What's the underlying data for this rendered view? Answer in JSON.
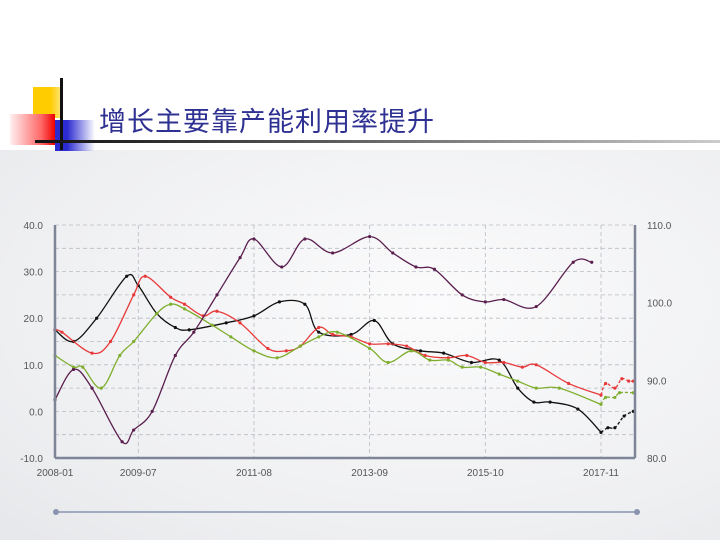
{
  "slide": {
    "title": "增长主要靠产能利用率提升"
  },
  "chart_data": {
    "type": "line",
    "title": "",
    "xlabel": "",
    "ylabel": "",
    "x_unit": "months since 2008-01",
    "x_ticks": [
      {
        "m": 0,
        "label": "2008-01"
      },
      {
        "m": 18,
        "label": "2009-07"
      },
      {
        "m": 43,
        "label": "2011-08"
      },
      {
        "m": 68,
        "label": "2013-09"
      },
      {
        "m": 93,
        "label": "2015-10"
      },
      {
        "m": 118,
        "label": "2017-11"
      }
    ],
    "xlim": [
      0,
      125
    ],
    "ylim_left": [
      -10,
      40
    ],
    "ylim_right": [
      80,
      110
    ],
    "y_ticks_left": [
      "40.0",
      "30.0",
      "20.0",
      "10.0",
      "0.0",
      "-10.0"
    ],
    "y_ticks_right": [
      "110.0",
      "100.0",
      "90.0",
      "80.0"
    ],
    "grid": true,
    "legend": "none",
    "colors": {
      "black": "#111111",
      "red": "#e8393a",
      "green": "#7fae2e",
      "purple": "#5a1f4f"
    },
    "series": [
      {
        "name": "black",
        "color": "#111111",
        "points": [
          [
            0,
            17.5
          ],
          [
            4,
            15
          ],
          [
            9,
            20
          ],
          [
            15.5,
            29
          ],
          [
            18,
            27
          ],
          [
            22,
            21
          ],
          [
            26,
            18
          ],
          [
            29,
            17.5
          ],
          [
            37,
            19
          ],
          [
            43,
            20.5
          ],
          [
            48.5,
            23.5
          ],
          [
            54,
            23
          ],
          [
            57,
            17
          ],
          [
            64,
            16.5
          ],
          [
            69,
            19.5
          ],
          [
            73,
            14.5
          ],
          [
            79,
            13
          ],
          [
            84,
            12.5
          ],
          [
            90,
            10.5
          ],
          [
            96,
            11
          ],
          [
            100,
            5
          ],
          [
            103.5,
            2
          ],
          [
            107,
            2
          ],
          [
            113,
            0.5
          ],
          [
            118,
            -4.5
          ]
        ],
        "tail": [
          [
            119.5,
            -3.5
          ],
          [
            121,
            -3.5
          ],
          [
            123,
            -1
          ],
          [
            125,
            0
          ]
        ]
      },
      {
        "name": "red",
        "color": "#e8393a",
        "points": [
          [
            0,
            17.5
          ],
          [
            1.5,
            17
          ],
          [
            8,
            12.5
          ],
          [
            12,
            15
          ],
          [
            17,
            25
          ],
          [
            19.5,
            29
          ],
          [
            25,
            24.5
          ],
          [
            28,
            23
          ],
          [
            32,
            20.5
          ],
          [
            35,
            21.5
          ],
          [
            40,
            19
          ],
          [
            46,
            13.5
          ],
          [
            50,
            13
          ],
          [
            53,
            14
          ],
          [
            57,
            18
          ],
          [
            60,
            16.5
          ],
          [
            64,
            16
          ],
          [
            68,
            14.5
          ],
          [
            72,
            14.5
          ],
          [
            76,
            14
          ],
          [
            80,
            12
          ],
          [
            85,
            11.5
          ],
          [
            89,
            12
          ],
          [
            93,
            10.5
          ],
          [
            97,
            10.5
          ],
          [
            101,
            9.5
          ],
          [
            104,
            10
          ],
          [
            111,
            6
          ],
          [
            118,
            3.5
          ]
        ],
        "tail": [
          [
            119,
            6
          ],
          [
            121,
            5
          ],
          [
            122.5,
            7
          ],
          [
            124,
            6.5
          ],
          [
            125,
            6.5
          ]
        ]
      },
      {
        "name": "green",
        "color": "#7fae2e",
        "points": [
          [
            0,
            12
          ],
          [
            4,
            9.5
          ],
          [
            6,
            9.5
          ],
          [
            10,
            5
          ],
          [
            14,
            12
          ],
          [
            17,
            15
          ],
          [
            22,
            21
          ],
          [
            25,
            23
          ],
          [
            28,
            22
          ],
          [
            34,
            18.5
          ],
          [
            38,
            16
          ],
          [
            43,
            13
          ],
          [
            48,
            11.5
          ],
          [
            53,
            14
          ],
          [
            57,
            16
          ],
          [
            61,
            17
          ],
          [
            68,
            13.5
          ],
          [
            72,
            10.5
          ],
          [
            77,
            13
          ],
          [
            81,
            11
          ],
          [
            85,
            11
          ],
          [
            88,
            9.5
          ],
          [
            92,
            9.5
          ],
          [
            96,
            8
          ],
          [
            100,
            6.5
          ],
          [
            104,
            5
          ],
          [
            109,
            5
          ],
          [
            118,
            1.5
          ]
        ],
        "tail": [
          [
            119,
            3
          ],
          [
            121,
            3
          ],
          [
            122,
            4
          ],
          [
            125,
            4
          ]
        ]
      },
      {
        "name": "purple",
        "color": "#5a1f4f",
        "points": [
          [
            0,
            2.5
          ],
          [
            4,
            9
          ],
          [
            8,
            5
          ],
          [
            14.5,
            -6.5
          ],
          [
            17,
            -4
          ],
          [
            21,
            0
          ],
          [
            26,
            12
          ],
          [
            30,
            17
          ],
          [
            35,
            25
          ],
          [
            40,
            33
          ],
          [
            43,
            37
          ],
          [
            49,
            31
          ],
          [
            54,
            37
          ],
          [
            60,
            34
          ],
          [
            68,
            37.5
          ],
          [
            73,
            34
          ],
          [
            78,
            31
          ],
          [
            82,
            30.5
          ],
          [
            88,
            25
          ],
          [
            93,
            23.5
          ],
          [
            97,
            24
          ],
          [
            104,
            22.5
          ],
          [
            112,
            32
          ],
          [
            116,
            32
          ]
        ],
        "tail": []
      }
    ]
  }
}
